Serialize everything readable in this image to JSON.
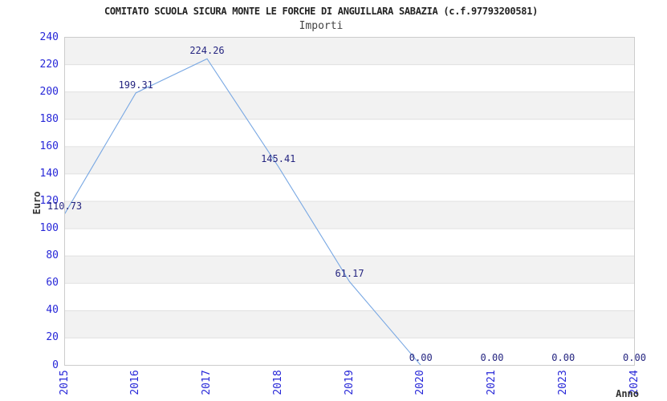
{
  "chart_data": {
    "type": "line",
    "title": "COMITATO SCUOLA SICURA MONTE LE FORCHE DI ANGUILLARA SABAZIA (c.f.97793200581)",
    "subtitle": "Importi",
    "ylabel": "Euro",
    "xlabel": "Anno",
    "categories": [
      "2015",
      "2016",
      "2017",
      "2018",
      "2019",
      "2020",
      "2021",
      "2023",
      "2024"
    ],
    "values": [
      110.73,
      199.31,
      224.26,
      145.41,
      61.17,
      0,
      0,
      0,
      0
    ],
    "point_labels": [
      "110.73",
      "199.31",
      "224.26",
      "145.41",
      "61.17",
      "0.00",
      "0.00",
      "0.00",
      "0.00"
    ],
    "ylim": [
      0,
      240
    ],
    "ytick_step": 20,
    "grid": "horizontal-bands",
    "legend": "none",
    "colors": {
      "line": "#79a8e3",
      "band": "#f2f2f2",
      "band_alt": "#ffffff",
      "gridline": "#e0e0e0",
      "frame": "#cccccc",
      "tick_label": "#2727d8",
      "point_label": "#252580"
    }
  }
}
